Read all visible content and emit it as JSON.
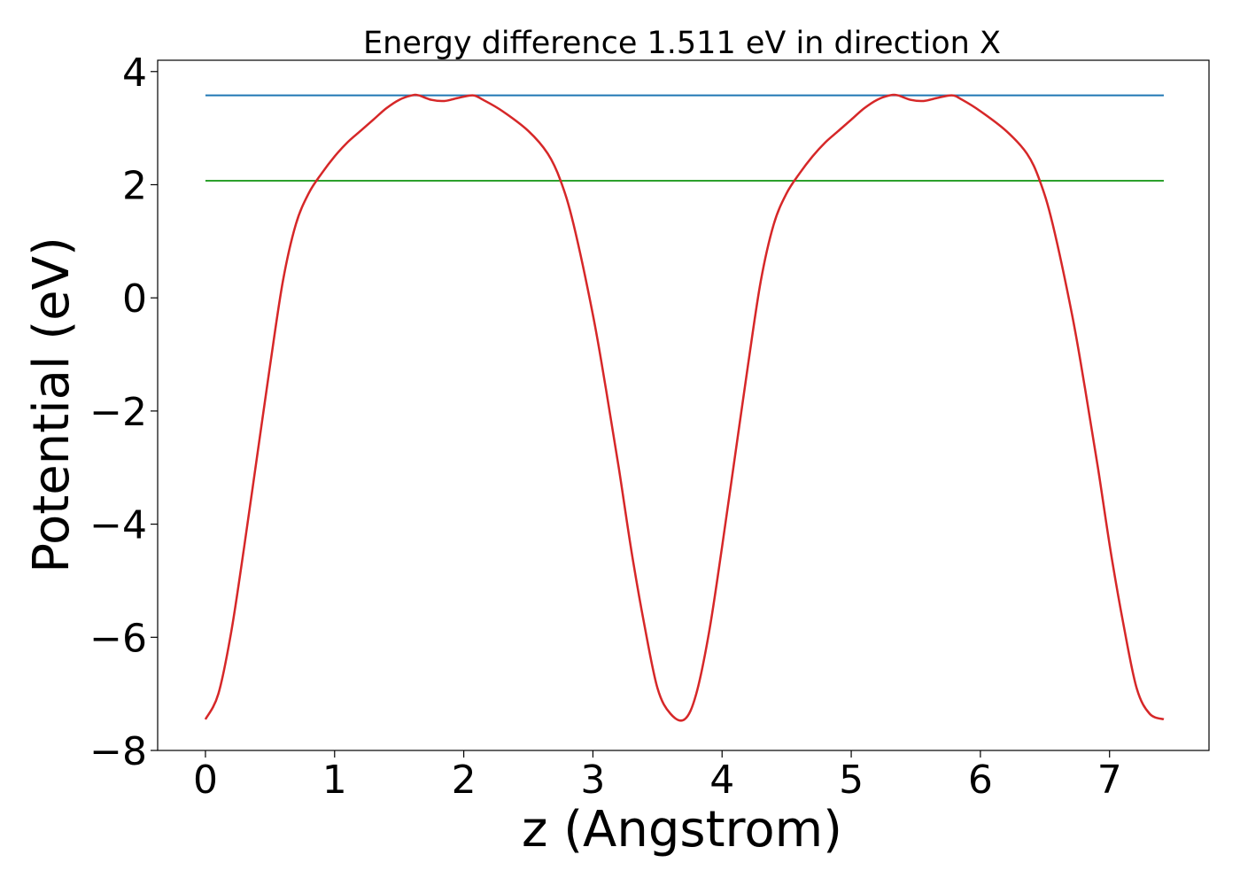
{
  "chart_data": {
    "type": "line",
    "title": "Energy difference 1.511 eV in direction X",
    "xlabel": "z (Angstrom)",
    "ylabel": "Potential (eV)",
    "xlim": [
      -0.37,
      7.77
    ],
    "ylim": [
      -8,
      4.2
    ],
    "xticks": [
      0,
      1,
      2,
      3,
      4,
      5,
      6,
      7
    ],
    "xtick_labels": [
      "0",
      "1",
      "2",
      "3",
      "4",
      "5",
      "6",
      "7"
    ],
    "yticks": [
      -8,
      -6,
      -4,
      -2,
      0,
      2,
      4
    ],
    "ytick_labels": [
      "−8",
      "−6",
      "−4",
      "−2",
      "0",
      "2",
      "4"
    ],
    "grid": false,
    "legend": "none",
    "series": [
      {
        "color": "#1f77b4",
        "style": "hline",
        "x": [
          0,
          7.42
        ],
        "y": [
          3.58,
          3.58
        ]
      },
      {
        "color": "#2ca02c",
        "style": "hline",
        "x": [
          0,
          7.42
        ],
        "y": [
          2.07,
          2.07
        ]
      },
      {
        "color": "#d62728",
        "style": "curve",
        "x": [
          0,
          0.1,
          0.2,
          0.3,
          0.4,
          0.5,
          0.6,
          0.7,
          0.8,
          0.9,
          1.0,
          1.1,
          1.2,
          1.3,
          1.4,
          1.5,
          1.6,
          1.65,
          1.75,
          1.85,
          1.95,
          2.07,
          2.15,
          2.3,
          2.5,
          2.65,
          2.75,
          2.85,
          3.0,
          3.1,
          3.2,
          3.3,
          3.4,
          3.5,
          3.6,
          3.71,
          3.8,
          3.9,
          4.0,
          4.1,
          4.2,
          4.3,
          4.4,
          4.5,
          4.6,
          4.7,
          4.8,
          4.9,
          5.0,
          5.1,
          5.2,
          5.3,
          5.36,
          5.46,
          5.56,
          5.66,
          5.78,
          5.86,
          6.0,
          6.2,
          6.36,
          6.46,
          6.56,
          6.71,
          6.81,
          6.91,
          7.01,
          7.11,
          7.21,
          7.31,
          7.42
        ],
        "y": [
          -7.45,
          -7.0,
          -5.9,
          -4.4,
          -2.8,
          -1.2,
          0.3,
          1.3,
          1.85,
          2.2,
          2.5,
          2.75,
          2.95,
          3.15,
          3.35,
          3.5,
          3.58,
          3.58,
          3.5,
          3.48,
          3.53,
          3.58,
          3.5,
          3.3,
          2.95,
          2.55,
          2.07,
          1.3,
          -0.3,
          -1.6,
          -3.0,
          -4.5,
          -5.8,
          -6.9,
          -7.35,
          -7.45,
          -7.0,
          -5.9,
          -4.4,
          -2.8,
          -1.2,
          0.3,
          1.3,
          1.85,
          2.2,
          2.5,
          2.75,
          2.95,
          3.15,
          3.35,
          3.5,
          3.58,
          3.58,
          3.5,
          3.48,
          3.53,
          3.58,
          3.5,
          3.3,
          2.95,
          2.55,
          2.07,
          1.3,
          -0.3,
          -1.6,
          -3.0,
          -4.5,
          -5.8,
          -6.9,
          -7.35,
          -7.45
        ]
      }
    ]
  }
}
